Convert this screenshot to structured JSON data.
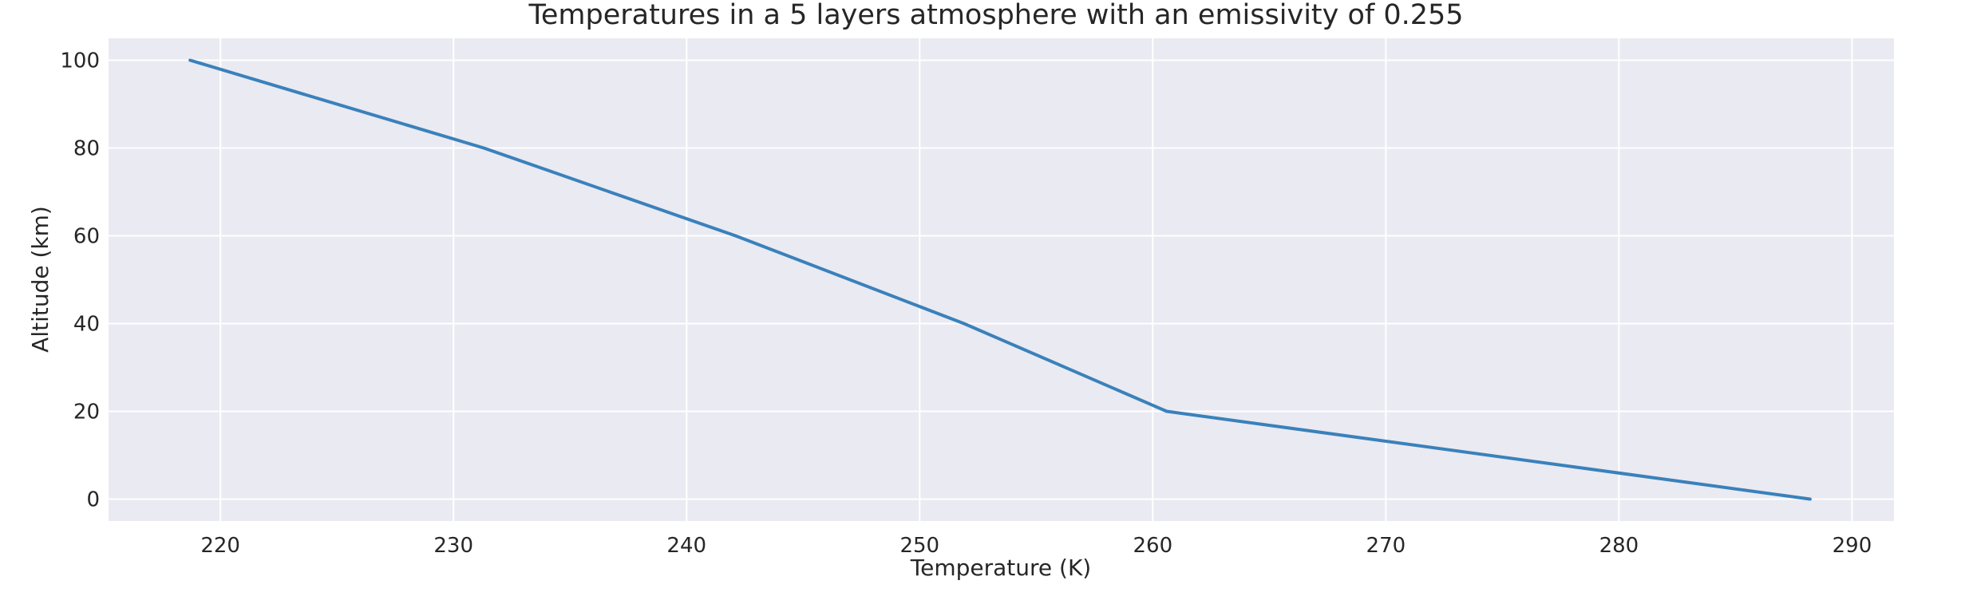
{
  "chart_data": {
    "type": "line",
    "title": "Temperatures in a 5 layers atmosphere with an emissivity of 0.255",
    "xlabel": "Temperature (K)",
    "ylabel": "Altitude (km)",
    "xlim": [
      215.2,
      291.8
    ],
    "ylim": [
      -5,
      105
    ],
    "xticks": [
      220,
      230,
      240,
      250,
      260,
      270,
      280,
      290
    ],
    "yticks": [
      0,
      20,
      40,
      60,
      80,
      100
    ],
    "grid": true,
    "series": [
      {
        "x": [
          288.2,
          260.6,
          251.9,
          242.1,
          231.3,
          218.7
        ],
        "y": [
          0,
          20,
          40,
          60,
          80,
          100
        ]
      }
    ],
    "colors": {
      "line": "#3a81bb",
      "plot_background": "#eaeaf2",
      "grid": "#ffffff",
      "text": "#262626"
    }
  }
}
